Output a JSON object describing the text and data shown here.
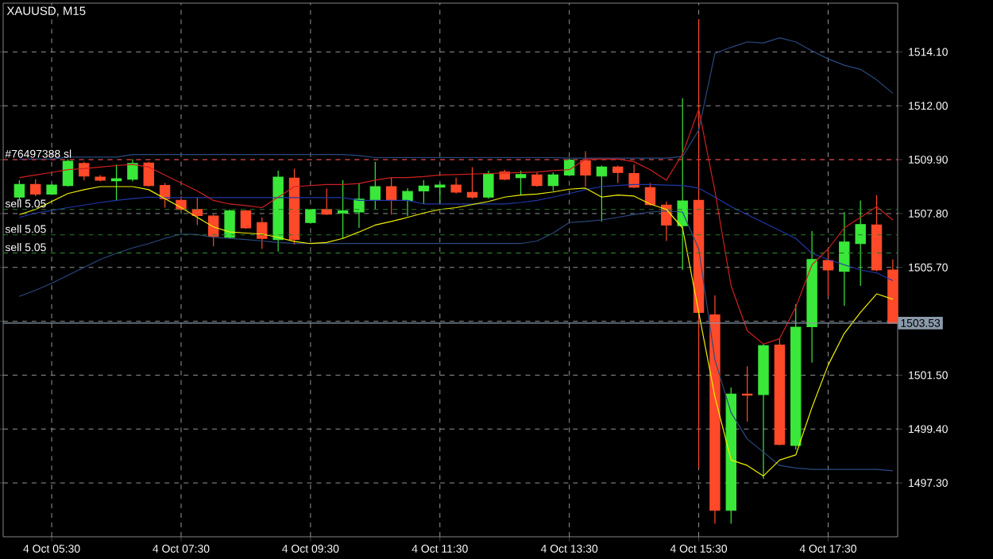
{
  "chart_data": {
    "type": "candlestick",
    "title": "XAUUSD, M15",
    "categories": [
      null,
      null,
      "4 Oct 05:30",
      null,
      null,
      null,
      null,
      null,
      null,
      null,
      "4 Oct 07:30",
      null,
      null,
      null,
      null,
      null,
      null,
      null,
      "4 Oct 09:30",
      null,
      null,
      null,
      null,
      null,
      null,
      null,
      "4 Oct 11:30",
      null,
      null,
      null,
      null,
      null,
      null,
      null,
      "4 Oct 13:30",
      null,
      null,
      null,
      null,
      null,
      null,
      null,
      "4 Oct 15:30",
      null,
      null,
      null,
      null,
      null,
      null,
      null,
      "4 Oct 17:30",
      null,
      null,
      null,
      null
    ],
    "ohlc": [
      [
        1508.44,
        1509.1,
        1508.31,
        1508.93
      ],
      [
        1508.93,
        1509.14,
        1508.48,
        1508.56
      ],
      [
        1508.56,
        1508.95,
        1508.54,
        1508.91
      ],
      [
        1508.89,
        1509.92,
        1508.85,
        1509.84
      ],
      [
        1509.75,
        1509.82,
        1509.1,
        1509.26
      ],
      [
        1509.22,
        1509.3,
        1509.05,
        1509.1
      ],
      [
        1509.08,
        1509.71,
        1508.31,
        1509.16
      ],
      [
        1509.14,
        1509.92,
        1509.05,
        1509.75
      ],
      [
        1509.77,
        1509.82,
        1508.85,
        1508.89
      ],
      [
        1508.89,
        1508.99,
        1508.03,
        1508.38
      ],
      [
        1508.31,
        1508.48,
        1507.94,
        1507.96
      ],
      [
        1507.96,
        1508.44,
        1507.35,
        1507.72
      ],
      [
        1507.7,
        1507.76,
        1506.52,
        1506.91
      ],
      [
        1506.87,
        1507.96,
        1506.83,
        1507.9
      ],
      [
        1507.9,
        1507.94,
        1507.2,
        1507.24
      ],
      [
        1507.45,
        1507.65,
        1506.42,
        1506.83
      ],
      [
        1506.79,
        1509.47,
        1506.32,
        1509.22
      ],
      [
        1509.18,
        1509.55,
        1506.59,
        1506.79
      ],
      [
        1507.45,
        1507.98,
        1507.41,
        1507.96
      ],
      [
        1507.96,
        1508.77,
        1507.74,
        1507.78
      ],
      [
        1507.82,
        1509.1,
        1506.83,
        1507.9
      ],
      [
        1507.86,
        1508.99,
        1507.24,
        1508.36
      ],
      [
        1508.31,
        1509.82,
        1507.96,
        1508.85
      ],
      [
        1508.85,
        1509.2,
        1507.76,
        1508.31
      ],
      [
        1508.31,
        1508.79,
        1507.7,
        1508.66
      ],
      [
        1508.68,
        1509.1,
        1508.17,
        1508.87
      ],
      [
        1508.83,
        1508.99,
        1508.17,
        1508.91
      ],
      [
        1508.91,
        1509.2,
        1508.58,
        1508.64
      ],
      [
        1508.62,
        1509.61,
        1508.38,
        1508.44
      ],
      [
        1508.44,
        1509.47,
        1508.38,
        1509.34
      ],
      [
        1509.42,
        1509.51,
        1509.1,
        1509.14
      ],
      [
        1509.2,
        1509.47,
        1508.52,
        1509.32
      ],
      [
        1509.3,
        1509.4,
        1508.85,
        1508.89
      ],
      [
        1508.89,
        1509.4,
        1508.68,
        1509.3
      ],
      [
        1509.3,
        1509.96,
        1509.26,
        1509.88
      ],
      [
        1509.86,
        1510.23,
        1508.85,
        1509.3
      ],
      [
        1509.26,
        1509.67,
        1507.49,
        1509.61
      ],
      [
        1509.61,
        1509.67,
        1508.99,
        1509.4
      ],
      [
        1509.36,
        1509.71,
        1508.79,
        1508.83
      ],
      [
        1508.81,
        1508.99,
        1508.11,
        1508.15
      ],
      [
        1508.13,
        1508.27,
        1506.73,
        1507.35
      ],
      [
        1507.33,
        1512.29,
        1505.6,
        1508.29
      ],
      [
        1508.31,
        1515.37,
        1497.87,
        1503.95
      ],
      [
        1503.85,
        1504.61,
        1495.71,
        1496.23
      ],
      [
        1496.23,
        1501.02,
        1495.71,
        1500.76
      ],
      [
        1500.76,
        1501.85,
        1499.69,
        1500.72
      ],
      [
        1500.74,
        1502.71,
        1497.46,
        1502.65
      ],
      [
        1502.67,
        1502.92,
        1498.76,
        1498.8
      ],
      [
        1498.76,
        1504.26,
        1498.6,
        1503.37
      ],
      [
        1503.39,
        1507.12,
        1501.99,
        1506.01
      ],
      [
        1505.97,
        1506.42,
        1504.57,
        1505.6
      ],
      [
        1505.55,
        1507.86,
        1504.2,
        1506.69
      ],
      [
        1506.63,
        1508.31,
        1504.98,
        1507.37
      ],
      [
        1507.35,
        1508.52,
        1505.55,
        1505.6
      ],
      [
        1505.6,
        1506.01,
        1503.5,
        1503.53
      ]
    ],
    "colors": [
      "#3ae83a",
      "#ff4a2a",
      "#3ae83a",
      "#3ae83a",
      "#ff4a2a",
      "#ff4a2a",
      "#3ae83a",
      "#3ae83a",
      "#ff4a2a",
      "#ff4a2a",
      "#ff4a2a",
      "#ff4a2a",
      "#ff4a2a",
      "#3ae83a",
      "#ff4a2a",
      "#ff4a2a",
      "#3ae83a",
      "#ff4a2a",
      "#3ae83a",
      "#ff4a2a",
      "#3ae83a",
      "#3ae83a",
      "#3ae83a",
      "#ff4a2a",
      "#3ae83a",
      "#3ae83a",
      "#3ae83a",
      "#ff4a2a",
      "#ff4a2a",
      "#3ae83a",
      "#ff4a2a",
      "#3ae83a",
      "#ff4a2a",
      "#3ae83a",
      "#3ae83a",
      "#ff4a2a",
      "#3ae83a",
      "#ff4a2a",
      "#ff4a2a",
      "#ff4a2a",
      "#ff4a2a",
      "#3ae83a",
      "#ff4a2a",
      "#ff4a2a",
      "#3ae83a",
      "#ff4a2a",
      "#3ae83a",
      "#ff4a2a",
      "#3ae83a",
      "#3ae83a",
      "#ff4a2a",
      "#3ae83a",
      "#3ae83a",
      "#ff4a2a",
      "#ff4a2a"
    ],
    "series": [
      {
        "type": "line",
        "color": "#2a4a80",
        "values": [
          1509.92,
          1509.92,
          1509.92,
          1510.0,
          1510.0,
          1510.0,
          1510.0,
          1510.1,
          1510.1,
          1510.1,
          1510.1,
          1510.1,
          1510.1,
          1510.1,
          1510.1,
          1510.1,
          1510.1,
          1510.1,
          1510.1,
          1510.1,
          1510.1,
          1510.06,
          1509.98,
          1509.98,
          1509.98,
          1509.98,
          1509.98,
          1509.98,
          1509.98,
          1509.98,
          1509.98,
          1509.98,
          1509.98,
          1509.98,
          1509.96,
          1509.96,
          1509.96,
          1509.96,
          1509.96,
          1509.96,
          1509.96,
          1510.02,
          1511.05,
          1514.04,
          1514.28,
          1514.49,
          1514.45,
          1514.65,
          1514.49,
          1514.14,
          1513.83,
          1513.58,
          1513.42,
          1513.01,
          1512.49
        ]
      },
      {
        "type": "line",
        "color": "#2038a8",
        "values": [
          1507.65,
          1507.82,
          1507.92,
          1508.03,
          1508.13,
          1508.23,
          1508.31,
          1508.38,
          1508.44,
          1508.42,
          1508.42,
          1508.42,
          1508.42,
          1508.42,
          1508.42,
          1508.42,
          1508.42,
          1508.42,
          1508.42,
          1508.42,
          1508.42,
          1508.31,
          1508.31,
          1508.31,
          1508.31,
          1508.17,
          1508.17,
          1508.17,
          1508.17,
          1508.17,
          1508.17,
          1508.23,
          1508.31,
          1508.44,
          1508.58,
          1508.73,
          1508.85,
          1508.89,
          1508.93,
          1508.93,
          1508.91,
          1508.89,
          1508.79,
          1508.44,
          1508.07,
          1507.76,
          1507.45,
          1507.14,
          1506.83,
          1506.25,
          1506.01,
          1505.8,
          1505.6,
          1505.49,
          1505.18
        ]
      },
      {
        "type": "line",
        "color": "#2a4a80",
        "values": [
          1504.57,
          1504.81,
          1505.08,
          1505.39,
          1505.7,
          1506.01,
          1506.25,
          1506.46,
          1506.63,
          1506.83,
          1507.0,
          1506.98,
          1506.87,
          1506.83,
          1506.79,
          1506.73,
          1506.67,
          1506.63,
          1506.63,
          1506.63,
          1506.63,
          1506.63,
          1506.63,
          1506.63,
          1506.63,
          1506.63,
          1506.63,
          1506.63,
          1506.63,
          1506.63,
          1506.63,
          1506.63,
          1506.73,
          1507.04,
          1507.45,
          1507.49,
          1507.55,
          1507.65,
          1507.76,
          1507.86,
          1507.9,
          1507.86,
          1506.42,
          1502.1,
          1500.04,
          1499.01,
          1498.5,
          1497.98,
          1497.88,
          1497.83,
          1497.83,
          1497.83,
          1497.83,
          1497.83,
          1497.77
        ]
      },
      {
        "type": "line",
        "color": "#d02020",
        "values": [
          1509.2,
          1509.3,
          1509.4,
          1509.51,
          1509.55,
          1509.61,
          1509.67,
          1509.71,
          1509.61,
          1509.3,
          1508.99,
          1508.68,
          1508.31,
          1508.17,
          1508.11,
          1508.03,
          1508.44,
          1508.85,
          1508.89,
          1508.93,
          1508.93,
          1508.97,
          1509.1,
          1509.2,
          1509.2,
          1509.24,
          1509.3,
          1509.32,
          1509.34,
          1509.36,
          1509.38,
          1509.4,
          1509.42,
          1509.47,
          1509.51,
          1509.92,
          1509.92,
          1509.92,
          1509.82,
          1509.51,
          1509.1,
          1510.12,
          1511.87,
          1508.68,
          1504.98,
          1503.23,
          1502.71,
          1502.92,
          1504.15,
          1505.8,
          1506.42,
          1507.24,
          1507.65,
          1508.07,
          1507.55
        ]
      },
      {
        "type": "line",
        "color": "#f0f000",
        "values": [
          1507.76,
          1507.96,
          1508.27,
          1508.58,
          1508.73,
          1508.85,
          1508.85,
          1508.85,
          1508.73,
          1508.38,
          1508.03,
          1507.65,
          1507.28,
          1507.08,
          1507.04,
          1507.0,
          1506.87,
          1506.71,
          1506.63,
          1506.67,
          1506.83,
          1507.08,
          1507.35,
          1507.49,
          1507.65,
          1507.82,
          1507.96,
          1508.03,
          1508.15,
          1508.27,
          1508.44,
          1508.52,
          1508.56,
          1508.64,
          1508.75,
          1508.79,
          1508.44,
          1508.52,
          1508.48,
          1508.17,
          1507.96,
          1507.24,
          1503.95,
          1500.66,
          1498.19,
          1497.98,
          1497.57,
          1498.19,
          1498.39,
          1500.24,
          1501.89,
          1503.13,
          1503.95,
          1504.67,
          1504.46
        ]
      }
    ],
    "ylim": [
      1495.2,
      1516.0
    ],
    "yticks": [
      {
        "value": 1497.3,
        "label": "1497.30"
      },
      {
        "value": 1499.4,
        "label": "1499.40"
      },
      {
        "value": 1501.5,
        "label": "1501.50"
      },
      {
        "value": 1503.6,
        "label": null
      },
      {
        "value": 1505.7,
        "label": "1505.70"
      },
      {
        "value": 1507.8,
        "label": "1507.80"
      },
      {
        "value": 1509.9,
        "label": "1509.90"
      },
      {
        "value": 1512.0,
        "label": "1512.00"
      },
      {
        "value": 1514.1,
        "label": "1514.10"
      }
    ],
    "ref_lines": [
      {
        "axis": "y",
        "value": 1509.9,
        "label": "#76497388 sl",
        "color": "#c02020",
        "line_style": "dashed"
      },
      {
        "axis": "y",
        "value": 1507.96,
        "label": "sell 5.05",
        "color": "#2a7a2a",
        "line_style": "dashed"
      },
      {
        "axis": "y",
        "value": 1506.97,
        "label": "sell 5.05",
        "color": "#2a7a2a",
        "line_style": "dashed"
      },
      {
        "axis": "y",
        "value": 1506.26,
        "label": "sell 5.05",
        "color": "#2a7a2a",
        "line_style": "dashed"
      },
      {
        "axis": "y",
        "value": 1503.53,
        "label": "1503.53",
        "color": "#8a9aaa",
        "line_style": "solid"
      }
    ],
    "grid": true
  }
}
